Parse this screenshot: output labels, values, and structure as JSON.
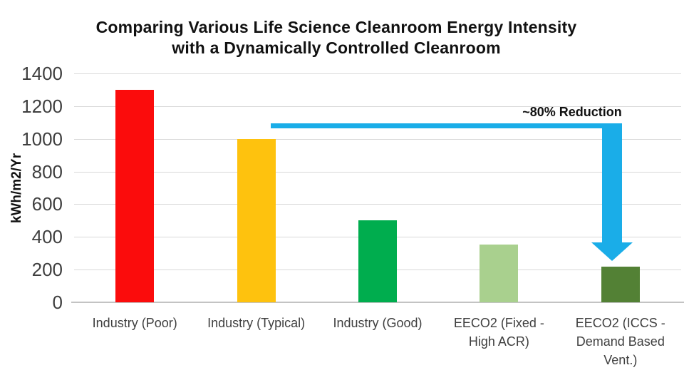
{
  "title": {
    "line1": "Comparing Various Life Science Cleanroom Energy Intensity",
    "line2": "with a Dynamically Controlled Cleanroom"
  },
  "chart_data": {
    "type": "bar",
    "title": "Comparing Various Life Science Cleanroom Energy Intensity with a Dynamically Controlled Cleanroom",
    "ylabel": "kWh/m2/Yr",
    "xlabel": "",
    "ylim": [
      0,
      1400
    ],
    "y_ticks": [
      0,
      200,
      400,
      600,
      800,
      1000,
      1200,
      1400
    ],
    "grid": true,
    "legend": "none",
    "categories": [
      "Industry (Poor)",
      "Industry (Typical)",
      "Industry (Good)",
      "EECO2 (Fixed - High ACR)",
      "EECO2 (ICCS - Demand Based Vent.)"
    ],
    "category_lines": [
      [
        "Industry (Poor)"
      ],
      [
        "Industry (Typical)"
      ],
      [
        "Industry (Good)"
      ],
      [
        "EECO2 (Fixed -",
        "High ACR)"
      ],
      [
        "EECO2 (ICCS -",
        "Demand Based",
        "Vent.)"
      ]
    ],
    "values": [
      1300,
      1000,
      500,
      355,
      220
    ],
    "bar_colors": [
      "#fb0c0c",
      "#fec20e",
      "#00ad4e",
      "#a9d08e",
      "#538135"
    ],
    "annotation": {
      "label": "~80% Reduction",
      "color": "#1aade8",
      "level": 1080,
      "from_index": 1,
      "to_index": 4
    }
  },
  "colors": {
    "gridline": "#d9d9d9",
    "axis_line": "#c3c3c3",
    "tick_text": "#3f3f3f",
    "title_text": "#111111",
    "background": "#ffffff"
  }
}
